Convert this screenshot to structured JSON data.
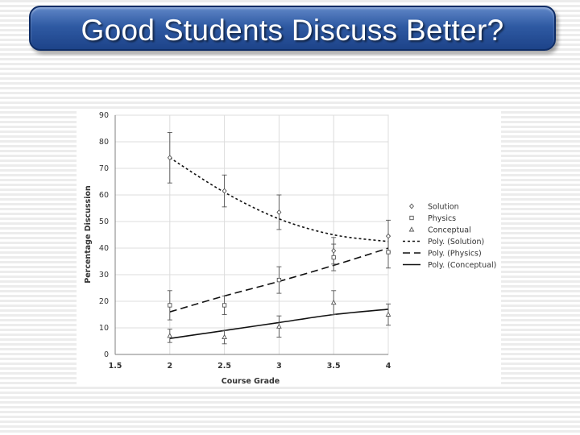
{
  "title": "Good Students Discuss Better?",
  "chart_data": {
    "type": "scatter",
    "xlabel": "Course Grade",
    "ylabel": "Percentage Discussion",
    "xlim": [
      1.5,
      4
    ],
    "ylim": [
      0,
      90
    ],
    "x_ticks": [
      "1.5",
      "2",
      "2.5",
      "3",
      "3.5",
      "4"
    ],
    "y_ticks": [
      "0",
      "10",
      "20",
      "30",
      "40",
      "50",
      "60",
      "70",
      "80",
      "90"
    ],
    "grid": true,
    "legend_position": "right",
    "series": [
      {
        "name": "Solution",
        "marker": "diamond",
        "x": [
          2,
          2.5,
          3,
          3.5,
          4
        ],
        "y": [
          74,
          61.5,
          53.5,
          39,
          44.5
        ],
        "err": [
          9.5,
          6,
          6.5,
          5,
          6
        ]
      },
      {
        "name": "Physics",
        "marker": "square",
        "x": [
          2,
          2.5,
          3,
          3.5,
          4
        ],
        "y": [
          18.5,
          18.5,
          28,
          36.5,
          38.5
        ],
        "err": [
          5.5,
          3.5,
          5,
          5,
          6
        ]
      },
      {
        "name": "Conceptual",
        "marker": "triangle",
        "x": [
          2,
          2.5,
          3,
          3.5,
          4
        ],
        "y": [
          7,
          6.5,
          10.5,
          19.5,
          15
        ],
        "err": [
          2.5,
          2.5,
          4,
          4.5,
          4
        ]
      }
    ],
    "trendlines": [
      {
        "name": "Poly. (Solution)",
        "dash": "short",
        "x": [
          2,
          2.5,
          3,
          3.5,
          4
        ],
        "y": [
          74,
          61,
          51,
          45,
          42.5
        ]
      },
      {
        "name": "Poly. (Physics)",
        "dash": "long",
        "x": [
          2,
          2.5,
          3,
          3.5,
          4
        ],
        "y": [
          16,
          22,
          27.5,
          33.5,
          40
        ]
      },
      {
        "name": "Poly. (Conceptual)",
        "dash": "solid",
        "x": [
          2,
          2.5,
          3,
          3.5,
          4
        ],
        "y": [
          6,
          9,
          12,
          15,
          17
        ]
      }
    ]
  }
}
